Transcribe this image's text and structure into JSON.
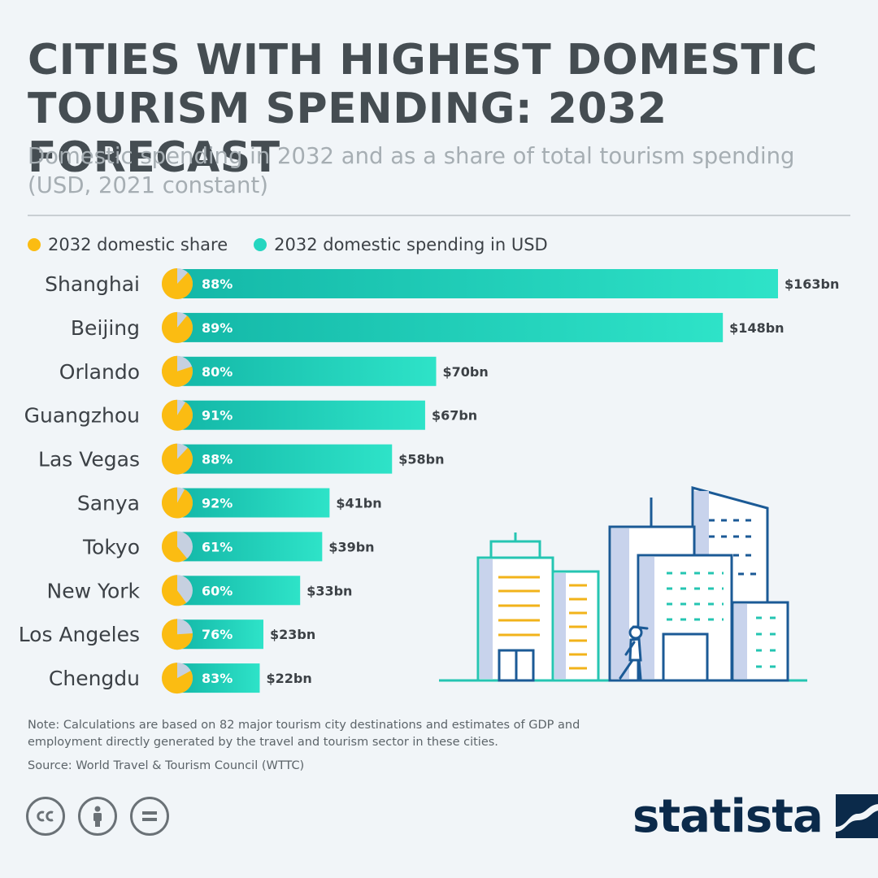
{
  "title": "CITIES WITH HIGHEST DOMESTIC TOURISM SPENDING: 2032 FORECAST",
  "subtitle": "Domestic spending in 2032 and as a share of total tourism spending (USD, 2021 constant)",
  "legend": [
    {
      "label": "2032 domestic share",
      "color": "#fbbc12"
    },
    {
      "label": "2032 domestic spending in USD",
      "color": "#25d6c0"
    }
  ],
  "chart_data": {
    "type": "bar",
    "orientation": "horizontal",
    "categories": [
      "Shanghai",
      "Beijing",
      "Orlando",
      "Guangzhou",
      "Las Vegas",
      "Sanya",
      "Tokyo",
      "New York",
      "Los Angeles",
      "Chengdu"
    ],
    "series": [
      {
        "name": "2032 domestic spending in USD",
        "values": [
          163,
          148,
          70,
          67,
          58,
          41,
          39,
          33,
          23,
          22
        ],
        "value_labels": [
          "$163bn",
          "$148bn",
          "$70bn",
          "$67bn",
          "$58bn",
          "$41bn",
          "$39bn",
          "$33bn",
          "$23bn",
          "$22bn"
        ],
        "color": "#25d6c0"
      },
      {
        "name": "2032 domestic share",
        "values": [
          88,
          89,
          80,
          91,
          88,
          92,
          61,
          60,
          76,
          83
        ],
        "value_labels": [
          "88%",
          "89%",
          "80%",
          "91%",
          "88%",
          "92%",
          "61%",
          "60%",
          "76%",
          "83%"
        ],
        "color": "#fbbc12"
      }
    ],
    "xlim": [
      0,
      163
    ],
    "grid": false,
    "legend_position": "top-left"
  },
  "note": "Note: Calculations are based on 82 major tourism city destinations and estimates of GDP and employment directly generated by the travel and tourism sector in these cities.",
  "source": "Source: World Travel & Tourism Council (WTTC)",
  "licenses": [
    "cc-icon",
    "attribution-icon",
    "no-derivatives-icon"
  ],
  "brand": "statista",
  "colors": {
    "title": "#454d52",
    "share": "#fbbc12",
    "spending": "#25d6c0",
    "pie_rest": "#c6d0e0",
    "illustration_line": "#1b5a96",
    "illustration_teal": "#25c5b2"
  }
}
